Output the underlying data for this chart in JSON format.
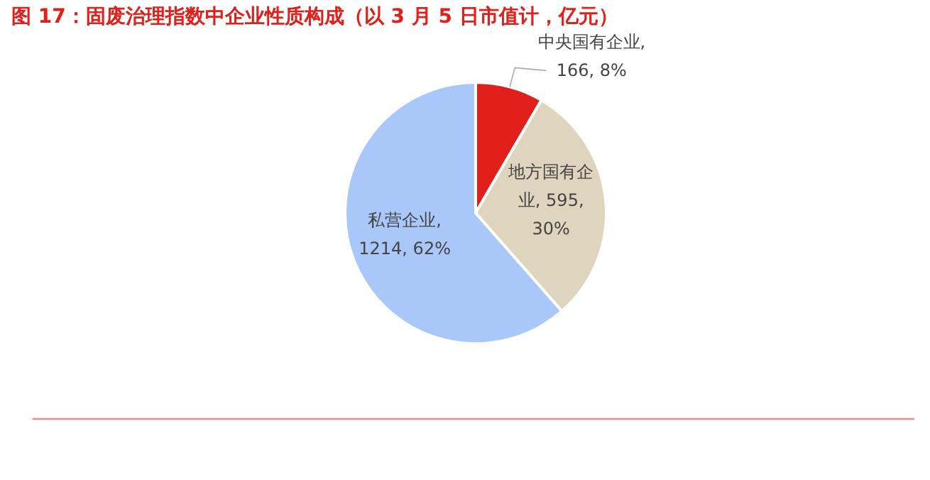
{
  "chart_data": {
    "type": "pie",
    "title": "图 17：固废治理指数中企业性质构成（以 3 月 5 日市值计，亿元）",
    "categories": [
      "中央国有企业, 166, 8%",
      "地方国有企业, 595, 30%",
      "私营企业, 1214, 62%"
    ],
    "values": [
      166,
      595,
      1214
    ],
    "colors": [
      "#e2201b",
      "#dfd4bd",
      "#a9c8f9"
    ],
    "legend": false
  }
}
